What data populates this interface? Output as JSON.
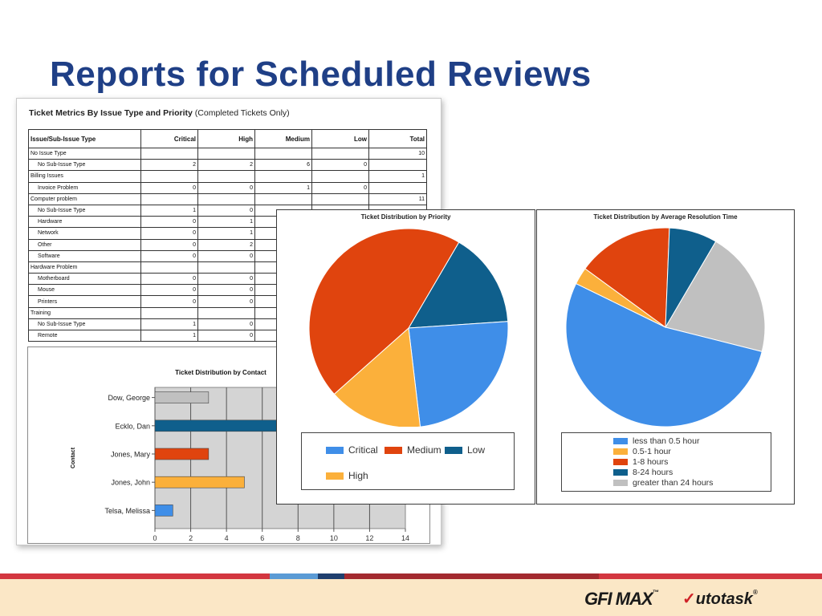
{
  "slide": {
    "title": "Reports for Scheduled Reviews"
  },
  "report": {
    "title_bold": "Ticket Metrics By Issue Type and Priority",
    "title_note": "(Completed Tickets Only)",
    "columns": [
      "Issue/Sub-Issue Type",
      "Critical",
      "High",
      "Medium",
      "Low",
      "Total"
    ],
    "rows": [
      {
        "type": "group",
        "cells": [
          "No Issue Type",
          "",
          "",
          "",
          "",
          "10"
        ]
      },
      {
        "type": "sub",
        "cells": [
          "No Sub-Issue Type",
          "2",
          "2",
          "6",
          "0",
          ""
        ]
      },
      {
        "type": "group",
        "cells": [
          "Billing Issues",
          "",
          "",
          "",
          "",
          "1"
        ]
      },
      {
        "type": "sub",
        "cells": [
          "Invoice Problem",
          "0",
          "0",
          "1",
          "0",
          ""
        ]
      },
      {
        "type": "group",
        "cells": [
          "Computer problem",
          "",
          "",
          "",
          "",
          "11"
        ]
      },
      {
        "type": "sub",
        "cells": [
          "No Sub-Issue Type",
          "1",
          "0",
          "",
          "",
          ""
        ]
      },
      {
        "type": "sub",
        "cells": [
          "Hardware",
          "0",
          "1",
          "",
          "",
          ""
        ]
      },
      {
        "type": "sub",
        "cells": [
          "Network",
          "0",
          "1",
          "",
          "",
          ""
        ]
      },
      {
        "type": "sub",
        "cells": [
          "Other",
          "0",
          "2",
          "",
          "",
          ""
        ]
      },
      {
        "type": "sub",
        "cells": [
          "Software",
          "0",
          "0",
          "",
          "",
          ""
        ]
      },
      {
        "type": "group",
        "cells": [
          "Hardware Problem",
          "",
          "",
          "",
          "",
          ""
        ]
      },
      {
        "type": "sub",
        "cells": [
          "Motherboard",
          "0",
          "0",
          "",
          "",
          ""
        ]
      },
      {
        "type": "sub",
        "cells": [
          "Mouse",
          "0",
          "0",
          "",
          "",
          ""
        ]
      },
      {
        "type": "sub",
        "cells": [
          "Printers",
          "0",
          "0",
          "",
          "",
          ""
        ]
      },
      {
        "type": "group",
        "cells": [
          "Training",
          "",
          "",
          "",
          "",
          ""
        ]
      },
      {
        "type": "sub",
        "cells": [
          "No Sub-Issue Type",
          "1",
          "0",
          "",
          "",
          ""
        ]
      },
      {
        "type": "sub",
        "cells": [
          "Remote",
          "1",
          "0",
          "",
          "",
          ""
        ]
      }
    ]
  },
  "chart_data": [
    {
      "type": "bar",
      "orientation": "horizontal",
      "title": "Ticket Distribution by Contact",
      "ylabel": "Contact",
      "categories": [
        "Dow, George",
        "Ecklo, Dan",
        "Jones, Mary",
        "Jones, John",
        "Telsa, Melissa"
      ],
      "values": [
        3,
        14,
        3,
        5,
        1
      ],
      "colors": [
        "#c0c0c0",
        "#0f5f8c",
        "#e0440e",
        "#fbb03b",
        "#3f8ee8"
      ],
      "xlim": [
        0,
        14
      ],
      "xticks": [
        "0",
        "2",
        "4",
        "6",
        "8",
        "10",
        "12",
        "14"
      ],
      "grid": true
    },
    {
      "type": "pie",
      "title": "Ticket Distribution by Priority",
      "labels": [
        "Low",
        "Critical",
        "High",
        "Medium"
      ],
      "values": [
        15.5,
        24.2,
        15.3,
        45.0
      ],
      "colors": [
        "#0f5f8c",
        "#3f8ee8",
        "#fbb03b",
        "#e0440e"
      ],
      "legend": [
        {
          "label": "Critical",
          "color": "#3f8ee8"
        },
        {
          "label": "Medium",
          "color": "#e0440e"
        },
        {
          "label": "Low",
          "color": "#0f5f8c"
        },
        {
          "label": "High",
          "color": "#fbb03b"
        }
      ],
      "legend_position": "bottom"
    },
    {
      "type": "pie",
      "title": "Ticket Distribution by Average Resolution Time",
      "labels": [
        "greater than 24 hours",
        "less than 0.5 hour",
        "0.5-1 hour",
        "1-8 hours",
        "8-24 hours"
      ],
      "values": [
        20.5,
        53.3,
        2.8,
        15.6,
        7.8
      ],
      "colors": [
        "#c0c0c0",
        "#3f8ee8",
        "#fbb03b",
        "#e0440e",
        "#0f5f8c"
      ],
      "legend": [
        {
          "label": "less than 0.5 hour",
          "color": "#3f8ee8"
        },
        {
          "label": "0.5-1 hour",
          "color": "#fbb03b"
        },
        {
          "label": "1-8 hours",
          "color": "#e0440e"
        },
        {
          "label": "8-24 hours",
          "color": "#0f5f8c"
        },
        {
          "label": "greater than 24 hours",
          "color": "#c0c0c0"
        }
      ],
      "legend_position": "bottom"
    }
  ],
  "footer": {
    "stripe_colors": [
      "#d3363f",
      "#5b9bd5",
      "#1f3f6e",
      "#a32a2f",
      "#d3363f"
    ],
    "logo_gfi": "GFI MAX",
    "logo_gfi_tm": "™",
    "logo_autotask_mark": "✓",
    "logo_autotask": "utotask",
    "logo_autotask_reg": "®"
  }
}
